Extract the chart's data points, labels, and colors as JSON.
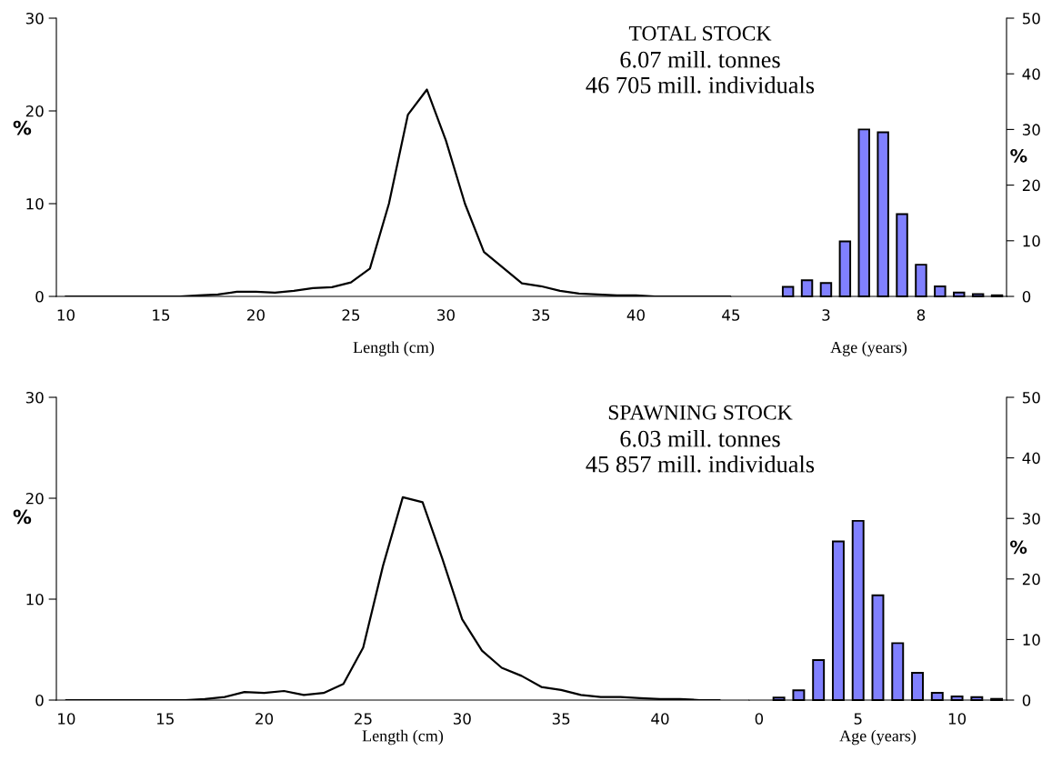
{
  "chart_data": [
    {
      "type": "line",
      "xlabel": "Length (cm)",
      "ylabel": "%",
      "annotations": [
        "TOTAL STOCK",
        "6.07 mill. tonnes",
        "46 705 mill. individuals"
      ],
      "x": [
        10,
        11,
        12,
        13,
        14,
        15,
        16,
        17,
        18,
        19,
        20,
        21,
        22,
        23,
        24,
        25,
        26,
        27,
        28,
        29,
        30,
        31,
        32,
        33,
        34,
        35,
        36,
        37,
        38,
        39,
        40,
        41,
        42,
        43,
        44,
        45
      ],
      "series": [
        {
          "color": "#000000",
          "values": [
            0,
            0,
            0,
            0,
            0,
            0,
            0,
            0.1,
            0.2,
            0.5,
            0.5,
            0.4,
            0.6,
            0.9,
            1.0,
            1.5,
            3.0,
            10,
            19.6,
            22.3,
            16.8,
            10,
            4.8,
            3.1,
            1.4,
            1.1,
            0.6,
            0.3,
            0.2,
            0.1,
            0.1,
            0,
            0,
            0,
            0,
            0
          ]
        }
      ],
      "xlim": [
        9.5,
        45
      ],
      "xticks": [
        10,
        15,
        20,
        25,
        30,
        35,
        40,
        45
      ],
      "ylim": [
        0,
        30
      ],
      "yticks": [
        0,
        10,
        20,
        30
      ],
      "grid": false,
      "legend": false,
      "marker": "none",
      "line_style": "solid"
    },
    {
      "type": "bar",
      "xlabel": "Age (years)",
      "y2label": "%",
      "x": [
        1,
        2,
        3,
        4,
        5,
        6,
        7,
        8,
        9,
        10,
        11,
        12
      ],
      "series": [
        {
          "color": "#8080ff",
          "axis": "y2",
          "values": [
            1.7,
            2.9,
            2.4,
            9.9,
            30.0,
            29.5,
            14.8,
            5.7,
            1.8,
            0.7,
            0.4,
            0.2
          ]
        }
      ],
      "xlim": [
        -2,
        12.5
      ],
      "xticks": [
        3,
        8
      ],
      "y2lim": [
        0,
        50
      ],
      "y2ticks": [
        0,
        10,
        20,
        30,
        40,
        50
      ],
      "grid": false,
      "legend": false
    },
    {
      "type": "line",
      "xlabel": "Length (cm)",
      "ylabel": "%",
      "annotations": [
        "SPAWNING STOCK",
        "6.03 mill. tonnes",
        "45 857 mill. individuals"
      ],
      "x": [
        10,
        11,
        12,
        13,
        14,
        15,
        16,
        17,
        18,
        19,
        20,
        21,
        22,
        23,
        24,
        25,
        26,
        27,
        28,
        29,
        30,
        31,
        32,
        33,
        34,
        35,
        36,
        37,
        38,
        39,
        40,
        41,
        42,
        43
      ],
      "series": [
        {
          "color": "#000000",
          "values": [
            0,
            0,
            0,
            0,
            0,
            0,
            0,
            0.1,
            0.3,
            0.8,
            0.7,
            0.9,
            0.5,
            0.7,
            1.6,
            5.2,
            13.3,
            20.1,
            19.6,
            14,
            8.0,
            4.9,
            3.2,
            2.4,
            1.3,
            1.0,
            0.5,
            0.3,
            0.3,
            0.2,
            0.1,
            0.1,
            0,
            0
          ]
        }
      ],
      "xlim": [
        9.5,
        44.5
      ],
      "xticks": [
        10,
        15,
        20,
        25,
        30,
        35,
        40
      ],
      "ylim": [
        0,
        30
      ],
      "yticks": [
        0,
        10,
        20,
        30
      ],
      "grid": false,
      "legend": false,
      "marker": "none",
      "line_style": "solid"
    },
    {
      "type": "bar",
      "xlabel": "Age (years)",
      "y2label": "%",
      "x": [
        1,
        2,
        3,
        4,
        5,
        6,
        7,
        8,
        9,
        10,
        11,
        12
      ],
      "series": [
        {
          "color": "#8080ff",
          "axis": "y2",
          "values": [
            0.4,
            1.6,
            6.6,
            26.2,
            29.6,
            17.3,
            9.4,
            4.5,
            1.2,
            0.6,
            0.5,
            0.2
          ]
        }
      ],
      "xlim": [
        -0.5,
        12.5
      ],
      "xticks": [
        0,
        5,
        10
      ],
      "y2lim": [
        0,
        50
      ],
      "y2ticks": [
        0,
        10,
        20,
        30,
        40,
        50
      ],
      "grid": false,
      "legend": false
    }
  ]
}
